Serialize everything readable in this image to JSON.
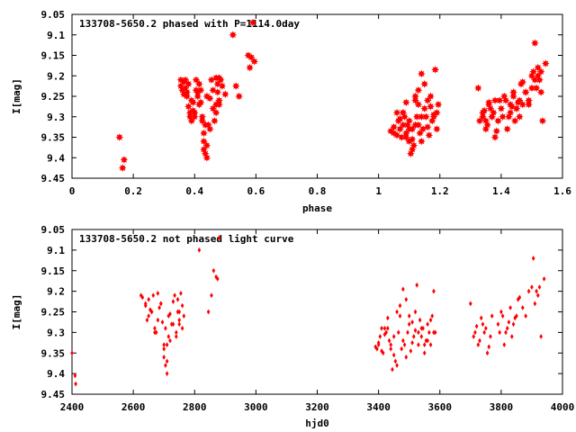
{
  "chart_data": [
    {
      "type": "scatter",
      "title": "133708-5650.2 phased with P=1114.0day",
      "xlabel": "phase",
      "ylabel": "I[mag]",
      "xlim": [
        0,
        1.6
      ],
      "ylim": [
        9.45,
        9.05
      ],
      "y_inverted": true,
      "xticks": [
        "0",
        "0.2",
        "0.4",
        "0.6",
        "0.8",
        "1",
        "1.2",
        "1.4",
        "1.6"
      ],
      "yticks": [
        "9.05",
        "9.1",
        "9.15",
        "9.2",
        "9.25",
        "9.3",
        "9.35",
        "9.4",
        "9.45"
      ],
      "marker": "star",
      "color": "#ff0000",
      "series": [
        {
          "x": [
            0.155,
            0.165,
            0.17,
            0.355,
            0.36,
            0.365,
            0.37,
            0.375,
            0.38,
            0.385,
            0.39,
            0.395,
            0.4,
            0.405,
            0.41,
            0.415,
            0.42,
            0.425,
            0.43,
            0.435,
            0.44,
            0.445,
            0.45,
            0.455,
            0.46,
            0.465,
            0.47,
            0.475,
            0.48,
            0.49,
            0.5,
            0.525,
            0.535,
            0.545,
            0.575,
            0.58,
            0.585,
            0.59,
            0.595,
            0.37,
            0.38,
            0.39,
            0.4,
            0.41,
            0.42,
            0.43,
            0.44,
            0.45,
            0.46,
            0.47,
            0.48,
            0.43,
            0.435,
            0.44,
            0.425,
            0.415,
            0.405,
            0.395,
            0.385,
            0.375,
            0.365,
            0.355,
            0.47,
            0.475,
            0.48,
            0.485,
            1.04,
            1.05,
            1.06,
            1.065,
            1.07,
            1.075,
            1.08,
            1.085,
            1.09,
            1.095,
            1.1,
            1.105,
            1.11,
            1.115,
            1.12,
            1.125,
            1.13,
            1.135,
            1.14,
            1.145,
            1.15,
            1.155,
            1.16,
            1.165,
            1.17,
            1.175,
            1.18,
            1.185,
            1.19,
            1.195,
            1.05,
            1.06,
            1.07,
            1.08,
            1.09,
            1.1,
            1.11,
            1.12,
            1.13,
            1.14,
            1.15,
            1.16,
            1.17,
            1.18,
            1.19,
            1.11,
            1.12,
            1.13,
            1.14,
            1.08,
            1.09,
            1.1,
            1.325,
            1.33,
            1.34,
            1.345,
            1.35,
            1.355,
            1.36,
            1.365,
            1.37,
            1.375,
            1.38,
            1.385,
            1.39,
            1.395,
            1.4,
            1.405,
            1.41,
            1.415,
            1.42,
            1.425,
            1.43,
            1.435,
            1.44,
            1.445,
            1.45,
            1.455,
            1.46,
            1.465,
            1.47,
            1.48,
            1.49,
            1.5,
            1.505,
            1.51,
            1.515,
            1.52,
            1.525,
            1.53,
            1.535,
            1.545,
            1.34,
            1.35,
            1.36,
            1.37,
            1.38,
            1.43,
            1.44,
            1.45,
            1.46,
            1.47,
            1.48,
            1.49,
            1.5,
            1.51,
            1.52,
            1.53
          ],
          "y": [
            9.35,
            9.425,
            9.405,
            9.21,
            9.235,
            9.245,
            9.21,
            9.25,
            9.275,
            9.3,
            9.31,
            9.285,
            9.3,
            9.21,
            9.25,
            9.22,
            9.265,
            9.3,
            9.36,
            9.39,
            9.4,
            9.32,
            9.255,
            9.21,
            9.235,
            9.31,
            9.27,
            9.22,
            9.205,
            9.225,
            9.245,
            9.1,
            9.225,
            9.25,
            9.15,
            9.18,
            9.155,
            9.07,
            9.165,
            9.23,
            9.22,
            9.26,
            9.29,
            9.24,
            9.235,
            9.38,
            9.37,
            9.33,
            9.28,
            9.29,
            9.26,
            9.34,
            9.32,
            9.25,
            9.31,
            9.27,
            9.235,
            9.265,
            9.29,
            9.24,
            9.215,
            9.225,
            9.205,
            9.24,
            9.27,
            9.21,
            9.335,
            9.34,
            9.345,
            9.31,
            9.33,
            9.35,
            9.29,
            9.3,
            9.265,
            9.32,
            9.33,
            9.39,
            9.355,
            9.37,
            9.25,
            9.3,
            9.235,
            9.34,
            9.195,
            9.33,
            9.22,
            9.3,
            9.26,
            9.345,
            9.275,
            9.31,
            9.295,
            9.185,
            9.33,
            9.27,
            9.325,
            9.29,
            9.305,
            9.29,
            9.34,
            9.31,
            9.38,
            9.26,
            9.32,
            9.36,
            9.28,
            9.325,
            9.25,
            9.3,
            9.29,
            9.33,
            9.32,
            9.27,
            9.3,
            9.32,
            9.35,
            9.36,
            9.23,
            9.31,
            9.3,
            9.285,
            9.33,
            9.32,
            9.265,
            9.28,
            9.3,
            9.29,
            9.35,
            9.335,
            9.31,
            9.26,
            9.28,
            9.3,
            9.25,
            9.26,
            9.33,
            9.3,
            9.29,
            9.275,
            9.24,
            9.31,
            9.28,
            9.265,
            9.26,
            9.22,
            9.215,
            9.24,
            9.26,
            9.2,
            9.19,
            9.12,
            9.23,
            9.2,
            9.21,
            9.19,
            9.31,
            9.17,
            9.29,
            9.31,
            9.27,
            9.3,
            9.26,
            9.27,
            9.25,
            9.28,
            9.3,
            9.27,
            9.24,
            9.27,
            9.23,
            9.21,
            9.18,
            9.24
          ]
        }
      ]
    },
    {
      "type": "scatter",
      "title": "133708-5650.2 not phased light curve",
      "xlabel": "hjd0",
      "ylabel": "I[mag]",
      "xlim": [
        2400,
        4000
      ],
      "ylim": [
        9.45,
        9.05
      ],
      "y_inverted": true,
      "xticks": [
        "2400",
        "2600",
        "2800",
        "3000",
        "3200",
        "3400",
        "3600",
        "3800",
        "4000"
      ],
      "yticks": [
        "9.05",
        "9.1",
        "9.15",
        "9.2",
        "9.25",
        "9.3",
        "9.35",
        "9.4",
        "9.45"
      ],
      "marker": "diamond",
      "color": "#ff0000",
      "series": [
        {
          "x": [
            2400,
            2410,
            2412,
            2625,
            2630,
            2640,
            2645,
            2650,
            2655,
            2660,
            2665,
            2670,
            2675,
            2680,
            2685,
            2690,
            2695,
            2700,
            2705,
            2710,
            2715,
            2720,
            2725,
            2730,
            2735,
            2740,
            2745,
            2750,
            2755,
            2760,
            2765,
            2640,
            2650,
            2660,
            2670,
            2680,
            2690,
            2700,
            2710,
            2720,
            2730,
            2740,
            2750,
            2760,
            2700,
            2705,
            2710,
            2715,
            2745,
            2750,
            2815,
            2845,
            2855,
            2862,
            2870,
            2875,
            2880,
            3390,
            3395,
            3400,
            3405,
            3410,
            3415,
            3420,
            3425,
            3430,
            3435,
            3440,
            3445,
            3450,
            3455,
            3460,
            3465,
            3470,
            3475,
            3480,
            3485,
            3490,
            3495,
            3500,
            3505,
            3510,
            3515,
            3520,
            3525,
            3530,
            3535,
            3540,
            3545,
            3550,
            3555,
            3560,
            3565,
            3570,
            3575,
            3580,
            3585,
            3400,
            3410,
            3420,
            3430,
            3440,
            3450,
            3460,
            3470,
            3480,
            3490,
            3500,
            3510,
            3520,
            3530,
            3540,
            3550,
            3560,
            3570,
            3580,
            3700,
            3710,
            3715,
            3720,
            3725,
            3730,
            3735,
            3740,
            3745,
            3750,
            3755,
            3760,
            3765,
            3770,
            3790,
            3795,
            3800,
            3805,
            3810,
            3815,
            3820,
            3825,
            3830,
            3835,
            3840,
            3845,
            3850,
            3855,
            3860,
            3870,
            3880,
            3890,
            3900,
            3905,
            3910,
            3915,
            3920,
            3925,
            3930,
            3940
          ],
          "y": [
            9.35,
            9.405,
            9.425,
            9.21,
            9.215,
            9.235,
            9.27,
            9.22,
            9.245,
            9.25,
            9.21,
            9.29,
            9.3,
            9.205,
            9.24,
            9.23,
            9.275,
            9.33,
            9.38,
            9.4,
            9.31,
            9.255,
            9.28,
            9.225,
            9.21,
            9.3,
            9.22,
            9.27,
            9.205,
            9.235,
            9.26,
            9.23,
            9.26,
            9.25,
            9.3,
            9.27,
            9.23,
            9.36,
            9.37,
            9.32,
            9.28,
            9.31,
            9.25,
            9.29,
            9.34,
            9.29,
            9.33,
            9.26,
            9.25,
            9.28,
            9.1,
            9.25,
            9.21,
            9.15,
            9.165,
            9.17,
            9.07,
            9.335,
            9.34,
            9.33,
            9.31,
            9.345,
            9.35,
            9.29,
            9.3,
            9.265,
            9.32,
            9.33,
            9.39,
            9.355,
            9.37,
            9.25,
            9.3,
            9.235,
            9.34,
            9.195,
            9.33,
            9.22,
            9.3,
            9.26,
            9.345,
            9.275,
            9.31,
            9.295,
            9.185,
            9.33,
            9.27,
            9.31,
            9.29,
            9.35,
            9.32,
            9.28,
            9.3,
            9.33,
            9.26,
            9.2,
            9.3,
            9.325,
            9.29,
            9.305,
            9.29,
            9.34,
            9.31,
            9.38,
            9.26,
            9.32,
            9.36,
            9.28,
            9.325,
            9.25,
            9.3,
            9.29,
            9.33,
            9.32,
            9.27,
            9.3,
            9.23,
            9.31,
            9.3,
            9.285,
            9.33,
            9.32,
            9.265,
            9.28,
            9.3,
            9.29,
            9.35,
            9.335,
            9.31,
            9.26,
            9.28,
            9.3,
            9.25,
            9.26,
            9.33,
            9.3,
            9.29,
            9.275,
            9.24,
            9.31,
            9.28,
            9.265,
            9.26,
            9.22,
            9.215,
            9.24,
            9.26,
            9.2,
            9.19,
            9.12,
            9.23,
            9.2,
            9.21,
            9.19,
            9.31,
            9.17
          ]
        }
      ]
    }
  ]
}
